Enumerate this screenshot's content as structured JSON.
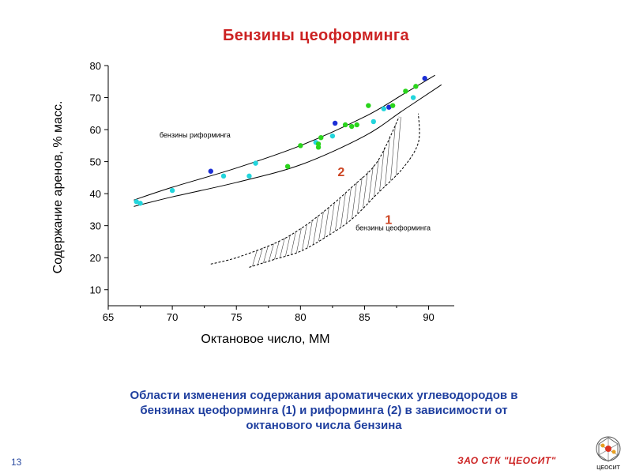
{
  "slide": {
    "title": "Бензины цеоформинга",
    "caption_lines": [
      "Области изменения содержания ароматических углеводородов в",
      "бензинах цеоформинга (1) и риформинга (2) в зависимости от",
      "октанового числа бензина"
    ],
    "page_number": "13",
    "company": "ЗАО СТК \"ЦЕОСИТ\"",
    "logo_text": "ЦЕОСИТ"
  },
  "colors": {
    "title": "#cc2222",
    "caption": "#1f3f9f",
    "region_label": "#cc4422",
    "marker_blue": "#1c2fd6",
    "marker_cyan": "#22d5dc",
    "marker_green": "#2ad41c"
  },
  "chart_data": {
    "type": "scatter",
    "xlabel": "Октановое число, ММ",
    "ylabel": "Содержание аренов, % масс.",
    "xlim": [
      65,
      92
    ],
    "ylim": [
      5,
      80
    ],
    "xticks": [
      65,
      70,
      75,
      80,
      85,
      90
    ],
    "yticks": [
      10,
      20,
      30,
      40,
      50,
      60,
      70,
      80
    ],
    "grid": false,
    "regions": [
      {
        "id": "reforming",
        "marker": "2",
        "annotation": "бензины риформинга",
        "upper_boundary": [
          [
            67,
            38
          ],
          [
            70,
            42
          ],
          [
            75,
            48
          ],
          [
            80,
            55
          ],
          [
            85,
            64
          ],
          [
            88,
            71
          ],
          [
            90.5,
            77
          ]
        ],
        "lower_boundary": [
          [
            67,
            36
          ],
          [
            70,
            39
          ],
          [
            75,
            43.5
          ],
          [
            80,
            49
          ],
          [
            85,
            58
          ],
          [
            88,
            66
          ],
          [
            91,
            74
          ]
        ]
      },
      {
        "id": "zeoforming",
        "marker": "1",
        "annotation": "бензины цеоформинга",
        "upper_boundary": [
          [
            73,
            18
          ],
          [
            75,
            20
          ],
          [
            78,
            24.5
          ],
          [
            80,
            29
          ],
          [
            82,
            35
          ],
          [
            84,
            42
          ],
          [
            86,
            50
          ],
          [
            87.7,
            64
          ]
        ],
        "lower_boundary": [
          [
            76,
            17
          ],
          [
            78,
            19.5
          ],
          [
            80,
            22
          ],
          [
            82,
            26.5
          ],
          [
            84,
            32
          ],
          [
            86,
            40
          ],
          [
            88,
            48
          ],
          [
            89.2,
            56
          ],
          [
            89.2,
            65
          ]
        ]
      }
    ],
    "points": [
      {
        "x": 67.2,
        "y": 37.5,
        "c": "cyan"
      },
      {
        "x": 67.5,
        "y": 37,
        "c": "cyan"
      },
      {
        "x": 70,
        "y": 41,
        "c": "cyan"
      },
      {
        "x": 73,
        "y": 47,
        "c": "blue"
      },
      {
        "x": 74,
        "y": 45.5,
        "c": "cyan"
      },
      {
        "x": 76,
        "y": 45.5,
        "c": "cyan"
      },
      {
        "x": 76.5,
        "y": 49.5,
        "c": "cyan"
      },
      {
        "x": 79,
        "y": 48.5,
        "c": "green"
      },
      {
        "x": 80,
        "y": 55,
        "c": "green"
      },
      {
        "x": 81.2,
        "y": 56,
        "c": "cyan"
      },
      {
        "x": 81.4,
        "y": 55.5,
        "c": "green"
      },
      {
        "x": 81.6,
        "y": 57.5,
        "c": "green"
      },
      {
        "x": 81.4,
        "y": 54.5,
        "c": "green"
      },
      {
        "x": 82.5,
        "y": 58,
        "c": "cyan"
      },
      {
        "x": 82.7,
        "y": 62,
        "c": "blue"
      },
      {
        "x": 83.5,
        "y": 61.5,
        "c": "green"
      },
      {
        "x": 84,
        "y": 61,
        "c": "green"
      },
      {
        "x": 84.4,
        "y": 61.5,
        "c": "green"
      },
      {
        "x": 85.3,
        "y": 67.5,
        "c": "green"
      },
      {
        "x": 85.7,
        "y": 62.5,
        "c": "cyan"
      },
      {
        "x": 86.5,
        "y": 66.5,
        "c": "cyan"
      },
      {
        "x": 86.9,
        "y": 67,
        "c": "blue"
      },
      {
        "x": 87.2,
        "y": 67.5,
        "c": "green"
      },
      {
        "x": 88.2,
        "y": 72,
        "c": "green"
      },
      {
        "x": 88.8,
        "y": 70,
        "c": "cyan"
      },
      {
        "x": 89,
        "y": 73.5,
        "c": "green"
      },
      {
        "x": 89.7,
        "y": 76,
        "c": "blue"
      }
    ]
  }
}
